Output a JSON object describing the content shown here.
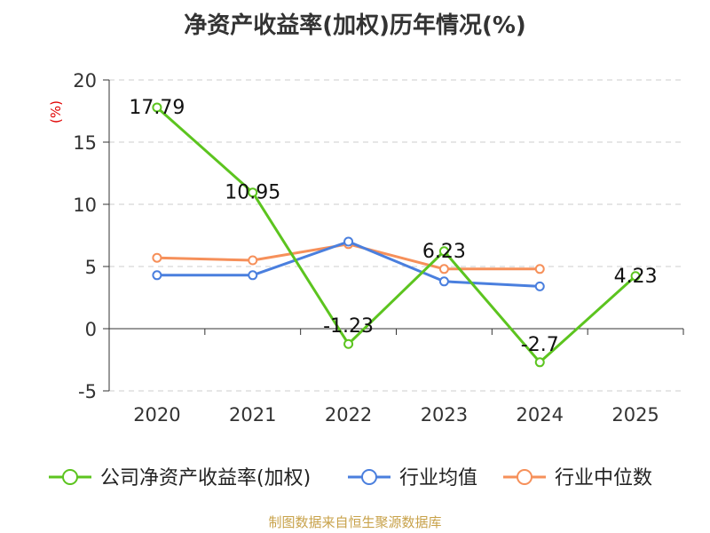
{
  "chart_data": {
    "type": "line",
    "title": "净资产收益率(加权)历年情况(%)",
    "ylabel": "(%)",
    "xlabel": "",
    "categories": [
      "2020",
      "2021",
      "2022",
      "2023",
      "2024",
      "2025"
    ],
    "ylim": [
      -5,
      20
    ],
    "yticks": [
      -5,
      0,
      5,
      10,
      15,
      20
    ],
    "grid": true,
    "legend_position": "bottom",
    "series": [
      {
        "name": "公司净资产收益率(加权)",
        "color": "#5cc41f",
        "values": [
          17.79,
          10.95,
          -1.23,
          6.23,
          -2.7,
          4.23
        ],
        "labels": [
          "17.79",
          "10.95",
          "-1.23",
          "6.23",
          "-2.7",
          "4.23"
        ]
      },
      {
        "name": "行业均值",
        "color": "#4a7fde",
        "values": [
          4.3,
          4.3,
          7.0,
          3.8,
          3.4,
          null
        ]
      },
      {
        "name": "行业中位数",
        "color": "#f6905a",
        "values": [
          5.7,
          5.5,
          6.8,
          4.8,
          4.8,
          null
        ]
      }
    ]
  },
  "footer": {
    "source": "制图数据来自恒生聚源数据库"
  }
}
